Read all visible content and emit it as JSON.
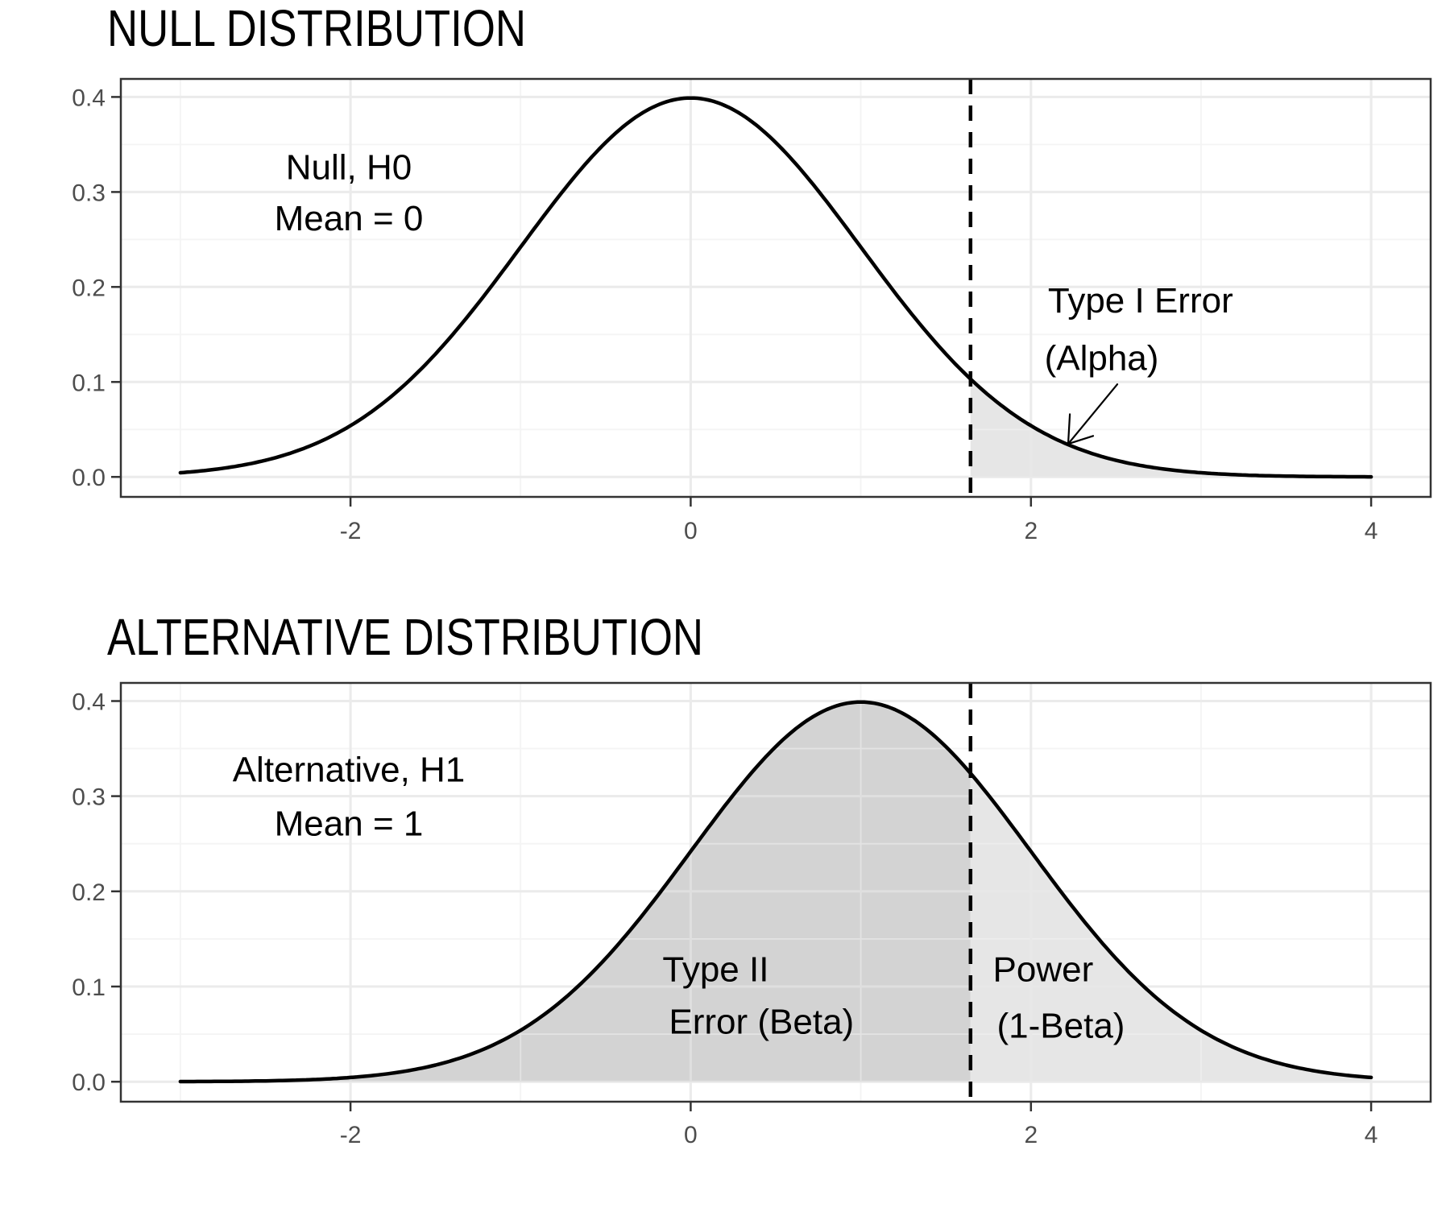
{
  "figure": {
    "background": "#ffffff",
    "description_title_null": "NULL DISTRIBUTION",
    "description_title_alternative": "ALTERNATIVE DISTRIBUTION"
  },
  "styles": {
    "curve_color": "#000000",
    "cutoff_line_color": "#000000",
    "grid_major_color": "#ebebeb",
    "grid_minor_color": "#f4f4f4",
    "panel_border_color": "#333333",
    "axis_tick_color": "#333333",
    "tick_label_color": "#4d4d4d",
    "annotation_color": "#000000",
    "fill_light_gray": "#e6e6e6",
    "fill_dark_gray": "#d3d3d3"
  },
  "chart_data": [
    {
      "type": "area",
      "panel_id": "null-distribution",
      "title": "NULL DISTRIBUTION",
      "distribution": "normal",
      "mean": 0,
      "sd": 1,
      "curve_domain": [
        -3,
        4
      ],
      "cutoff": 1.645,
      "xlim": [
        -3.35,
        4.35
      ],
      "ylim": [
        -0.021,
        0.419
      ],
      "grid": true,
      "x_ticks": {
        "values": [
          -2,
          0,
          2,
          4
        ],
        "labels": [
          "-2",
          "0",
          "2",
          "4"
        ]
      },
      "y_ticks": {
        "values": [
          0.0,
          0.1,
          0.2,
          0.3,
          0.4
        ],
        "labels": [
          "0.0",
          "0.1",
          "0.2",
          "0.3",
          "0.4"
        ]
      },
      "x_minor": [
        -3,
        -1,
        1,
        3
      ],
      "y_minor": [
        0.05,
        0.15,
        0.25,
        0.35
      ],
      "regions": [
        {
          "name": "type1-error-area",
          "from": 1.645,
          "to": 4,
          "fill": "#e6e6e6",
          "meaning": "Type I Error (Alpha)"
        }
      ],
      "annotations": [
        {
          "name": "h0-label-line1",
          "text": "Null, H0",
          "x": -2.01,
          "y": 0.327,
          "anchor": "middle"
        },
        {
          "name": "h0-label-line2",
          "text": "Mean = 0",
          "x": -2.01,
          "y": 0.273,
          "anchor": "middle"
        },
        {
          "name": "type1-label-line1",
          "text": "Type I Error",
          "x": 2.1,
          "y": 0.1865,
          "anchor": "start"
        },
        {
          "name": "type1-label-line2",
          "text": "(Alpha)",
          "x": 2.08,
          "y": 0.1263,
          "anchor": "start"
        }
      ],
      "arrow": {
        "shaft_from": [
          2.508,
          0.0975
        ],
        "shaft_to": [
          2.219,
          0.0348
        ],
        "head": [
          [
            2.229,
            0.0661
          ],
          [
            2.366,
            0.0432
          ]
        ]
      }
    },
    {
      "type": "area",
      "panel_id": "alternative-distribution",
      "title": "ALTERNATIVE DISTRIBUTION",
      "distribution": "normal",
      "mean": 1,
      "sd": 1,
      "curve_domain": [
        -3,
        4
      ],
      "cutoff": 1.645,
      "xlim": [
        -3.35,
        4.35
      ],
      "ylim": [
        -0.021,
        0.419
      ],
      "grid": true,
      "x_ticks": {
        "values": [
          -2,
          0,
          2,
          4
        ],
        "labels": [
          "-2",
          "0",
          "2",
          "4"
        ]
      },
      "y_ticks": {
        "values": [
          0.0,
          0.1,
          0.2,
          0.3,
          0.4
        ],
        "labels": [
          "0.0",
          "0.1",
          "0.2",
          "0.3",
          "0.4"
        ]
      },
      "x_minor": [
        -3,
        -1,
        1,
        3
      ],
      "y_minor": [
        0.05,
        0.15,
        0.25,
        0.35
      ],
      "regions": [
        {
          "name": "type2-error-area",
          "from": -3,
          "to": 1.645,
          "fill": "#d3d3d3",
          "meaning": "Type II Error (Beta)"
        },
        {
          "name": "power-area",
          "from": 1.645,
          "to": 4,
          "fill": "#e6e6e6",
          "meaning": "Power (1-Beta)"
        }
      ],
      "annotations": [
        {
          "name": "h1-label-line1",
          "text": "Alternative, H1",
          "x": -2.01,
          "y": 0.329,
          "anchor": "middle"
        },
        {
          "name": "h1-label-line2",
          "text": "Mean = 1",
          "x": -2.01,
          "y": 0.272,
          "anchor": "middle"
        },
        {
          "name": "type2-label-line1",
          "text": "Type II",
          "x": -0.166,
          "y": 0.119,
          "anchor": "start"
        },
        {
          "name": "type2-label-line2",
          "text": "Error (Beta)",
          "x": -0.128,
          "y": 0.064,
          "anchor": "start"
        },
        {
          "name": "power-label-line1",
          "text": "Power",
          "x": 1.776,
          "y": 0.119,
          "anchor": "start"
        },
        {
          "name": "power-label-line2",
          "text": "(1-Beta)",
          "x": 1.8,
          "y": 0.06,
          "anchor": "start"
        }
      ]
    }
  ]
}
